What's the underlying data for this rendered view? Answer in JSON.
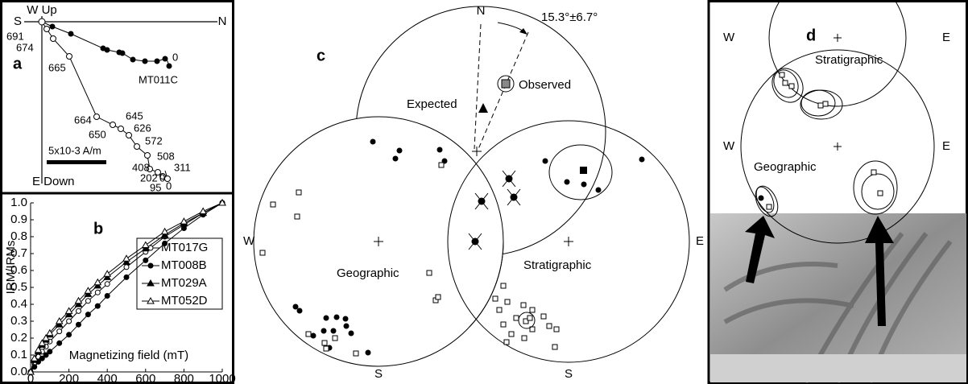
{
  "chart_data": {
    "type": "line",
    "panel_letter": "b",
    "x_label": "Magnetizing field (mT)",
    "y_label": "IRM/IRMs",
    "x": [
      0,
      20,
      40,
      60,
      80,
      100,
      150,
      200,
      250,
      300,
      350,
      400,
      500,
      600,
      700,
      800,
      900,
      1000
    ],
    "series": [
      {
        "name": "MT017G",
        "color": "#000000",
        "marker": "open-circle",
        "values": [
          0,
          0.05,
          0.09,
          0.12,
          0.15,
          0.18,
          0.24,
          0.3,
          0.36,
          0.42,
          0.47,
          0.52,
          0.62,
          0.71,
          0.8,
          0.87,
          0.94,
          1.0
        ]
      },
      {
        "name": "MT008B",
        "color": "#000000",
        "marker": "filled-circle",
        "values": [
          0,
          0.03,
          0.06,
          0.08,
          0.1,
          0.12,
          0.17,
          0.22,
          0.28,
          0.34,
          0.39,
          0.45,
          0.56,
          0.66,
          0.76,
          0.85,
          0.93,
          1.0
        ]
      },
      {
        "name": "MT029A",
        "color": "#000000",
        "marker": "filled-triangle",
        "values": [
          0,
          0.07,
          0.12,
          0.16,
          0.19,
          0.22,
          0.28,
          0.34,
          0.4,
          0.46,
          0.51,
          0.56,
          0.65,
          0.73,
          0.81,
          0.88,
          0.94,
          1.0
        ]
      },
      {
        "name": "MT052D",
        "color": "#000000",
        "marker": "open-triangle",
        "values": [
          0,
          0.08,
          0.13,
          0.17,
          0.2,
          0.23,
          0.3,
          0.36,
          0.42,
          0.48,
          0.53,
          0.58,
          0.67,
          0.75,
          0.83,
          0.89,
          0.95,
          1.0
        ]
      }
    ],
    "xlim": [
      0,
      1000
    ],
    "xticks": [
      0,
      200,
      400,
      600,
      800,
      1000
    ],
    "ylim": [
      0,
      1
    ],
    "yticks": [
      {
        "value": 0,
        "label": "0.0"
      },
      0.1,
      0.2,
      0.3,
      0.4,
      0.5,
      0.6,
      0.7,
      0.8,
      0.9,
      {
        "value": 1,
        "label": "1.0"
      }
    ],
    "grid": false,
    "legend": "right"
  },
  "panel_a": {
    "letter": "a",
    "up": "W Up",
    "left": "S",
    "right": "N",
    "down": "E Down",
    "sample": "MT011C",
    "scale": "5x10-3 A/m",
    "steps": [
      "691",
      "674",
      "665",
      "664",
      "645",
      "650",
      "626",
      "572",
      "508",
      "408",
      "311",
      "202",
      "0",
      "95",
      "0",
      "0"
    ]
  },
  "panel_c": {
    "letter": "c",
    "north": "N",
    "rotation": "15.3°±6.7°",
    "expected": "Expected",
    "observed": "Observed",
    "west": "W",
    "east": "E",
    "south_left": "S",
    "south_right": "S",
    "geographic": "Geographic",
    "stratigraphic": "Stratigraphic"
  },
  "panel_d": {
    "letter": "d",
    "west_top": "W",
    "east_top": "E",
    "stratigraphic": "Stratigraphic",
    "west_bottom": "W",
    "east_bottom": "E",
    "geographic": "Geographic"
  }
}
